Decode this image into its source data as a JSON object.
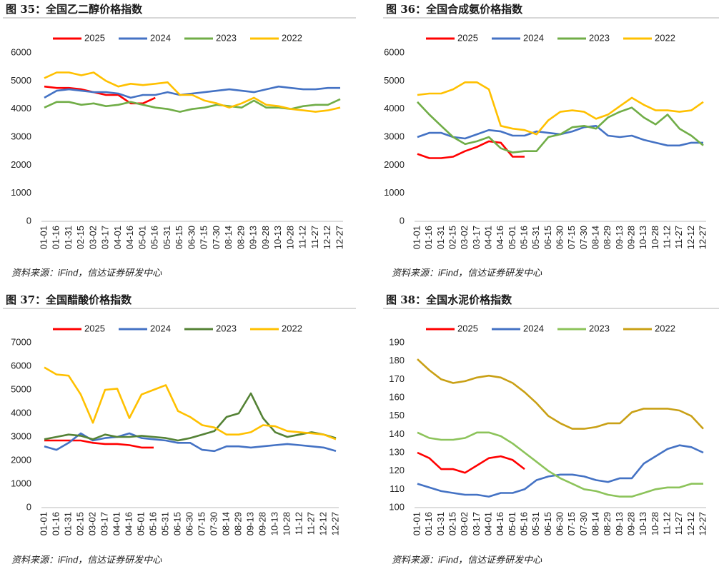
{
  "chart_data": [
    {
      "type": "line",
      "title": "图 35：全国乙二醇价格指数",
      "source": "资料来源：iFind，信达证券研发中心",
      "categories": [
        "01-01",
        "01-16",
        "01-31",
        "02-15",
        "03-02",
        "03-17",
        "04-01",
        "04-16",
        "05-01",
        "05-16",
        "05-31",
        "06-15",
        "06-30",
        "07-15",
        "07-30",
        "08-14",
        "08-29",
        "09-13",
        "09-28",
        "10-13",
        "10-28",
        "11-12",
        "11-27",
        "12-12",
        "12-27"
      ],
      "ylim": [
        0,
        6000
      ],
      "yticks": [
        0,
        1000,
        2000,
        3000,
        4000,
        5000,
        6000
      ],
      "series": [
        {
          "name": "2025",
          "color": "#ff0000",
          "values": [
            4800,
            4750,
            4750,
            4700,
            4600,
            4500,
            4500,
            4200,
            4200,
            4400,
            null,
            null,
            null,
            null,
            null,
            null,
            null,
            null,
            null,
            null,
            null,
            null,
            null,
            null,
            null
          ]
        },
        {
          "name": "2024",
          "color": "#4472c4",
          "values": [
            4400,
            4650,
            4700,
            4650,
            4600,
            4600,
            4550,
            4400,
            4500,
            4500,
            4600,
            4500,
            4550,
            4600,
            4650,
            4700,
            4650,
            4600,
            4700,
            4800,
            4750,
            4700,
            4700,
            4750,
            4750
          ]
        },
        {
          "name": "2023",
          "color": "#70ad47",
          "values": [
            4050,
            4250,
            4250,
            4150,
            4200,
            4100,
            4150,
            4250,
            4150,
            4050,
            4000,
            3900,
            4000,
            4050,
            4150,
            4100,
            4050,
            4300,
            4050,
            4050,
            4000,
            4100,
            4150,
            4150,
            4350
          ]
        },
        {
          "name": "2022",
          "color": "#ffc000",
          "values": [
            5100,
            5300,
            5300,
            5200,
            5300,
            5000,
            4800,
            4900,
            4850,
            4900,
            4950,
            4500,
            4500,
            4300,
            4200,
            4050,
            4200,
            4400,
            4150,
            4100,
            4000,
            3950,
            3900,
            3950,
            4050
          ]
        }
      ]
    },
    {
      "type": "line",
      "title": "图 36：全国合成氨价格指数",
      "source": "资料来源：iFind，信达证券研发中心",
      "categories": [
        "01-01",
        "01-16",
        "01-31",
        "02-15",
        "03-02",
        "03-17",
        "04-01",
        "04-16",
        "05-01",
        "05-16",
        "05-31",
        "06-15",
        "06-30",
        "07-15",
        "07-30",
        "08-14",
        "08-29",
        "09-13",
        "09-28",
        "10-13",
        "10-28",
        "11-12",
        "11-27",
        "12-12",
        "12-27"
      ],
      "ylim": [
        0,
        6000
      ],
      "yticks": [
        0,
        1000,
        2000,
        3000,
        4000,
        5000,
        6000
      ],
      "series": [
        {
          "name": "2025",
          "color": "#ff0000",
          "values": [
            2400,
            2250,
            2250,
            2300,
            2500,
            2650,
            2850,
            2800,
            2300,
            2300,
            null,
            null,
            null,
            null,
            null,
            null,
            null,
            null,
            null,
            null,
            null,
            null,
            null,
            null,
            null
          ]
        },
        {
          "name": "2024",
          "color": "#4472c4",
          "values": [
            3000,
            3150,
            3150,
            3000,
            2950,
            3100,
            3250,
            3200,
            3050,
            3050,
            3200,
            3150,
            3100,
            3200,
            3350,
            3400,
            3050,
            3000,
            3050,
            2900,
            2800,
            2700,
            2700,
            2800,
            2800
          ]
        },
        {
          "name": "2023",
          "color": "#70ad47",
          "values": [
            4250,
            3800,
            3400,
            3000,
            2750,
            2850,
            3000,
            2600,
            2450,
            2500,
            2500,
            3000,
            3100,
            3350,
            3400,
            3300,
            3700,
            3900,
            4050,
            3700,
            3450,
            3800,
            3300,
            3050,
            2700
          ]
        },
        {
          "name": "2022",
          "color": "#ffc000",
          "values": [
            4500,
            4550,
            4550,
            4700,
            4950,
            4950,
            4700,
            3400,
            3300,
            3250,
            3100,
            3600,
            3900,
            3950,
            3900,
            3650,
            3800,
            4100,
            4400,
            4150,
            3950,
            3950,
            3900,
            3950,
            4250
          ]
        }
      ]
    },
    {
      "type": "line",
      "title": "图 37：全国醋酸价格指数",
      "source": "资料来源：iFind，信达证券研发中心",
      "categories": [
        "01-01",
        "01-16",
        "01-31",
        "02-15",
        "03-02",
        "03-17",
        "04-01",
        "04-16",
        "05-01",
        "05-16",
        "05-31",
        "06-15",
        "06-30",
        "07-15",
        "07-30",
        "08-14",
        "08-29",
        "09-13",
        "09-28",
        "10-13",
        "10-28",
        "11-12",
        "11-27",
        "12-12",
        "12-27"
      ],
      "ylim": [
        0,
        7000
      ],
      "yticks": [
        0,
        1000,
        2000,
        3000,
        4000,
        5000,
        6000,
        7000
      ],
      "series": [
        {
          "name": "2025",
          "color": "#ff0000",
          "values": [
            2850,
            2850,
            2850,
            2850,
            2750,
            2700,
            2700,
            2650,
            2550,
            2550,
            null,
            null,
            null,
            null,
            null,
            null,
            null,
            null,
            null,
            null,
            null,
            null,
            null,
            null,
            null
          ]
        },
        {
          "name": "2024",
          "color": "#4472c4",
          "values": [
            2600,
            2450,
            2750,
            3150,
            2850,
            2950,
            3000,
            3150,
            2950,
            2900,
            2850,
            2750,
            2750,
            2450,
            2400,
            2600,
            2600,
            2550,
            2600,
            2650,
            2700,
            2650,
            2600,
            2550,
            2400
          ]
        },
        {
          "name": "2023",
          "color": "#548235",
          "values": [
            2900,
            3000,
            3100,
            3050,
            2900,
            3100,
            3000,
            3000,
            3050,
            3000,
            2950,
            2850,
            2950,
            3100,
            3250,
            3850,
            4000,
            4850,
            3800,
            3200,
            3000,
            3100,
            3200,
            3100,
            2950
          ]
        },
        {
          "name": "2022",
          "color": "#ffc000",
          "values": [
            5950,
            5650,
            5600,
            4800,
            3600,
            5000,
            5050,
            3800,
            4800,
            5000,
            5200,
            4100,
            3850,
            3500,
            3400,
            3100,
            3100,
            3200,
            3500,
            3450,
            3250,
            3200,
            3150,
            3100,
            2900
          ]
        }
      ]
    },
    {
      "type": "line",
      "title": "图 38：全国水泥价格指数",
      "source": "资料来源：iFind，信达证券研发中心",
      "categories": [
        "01-01",
        "01-16",
        "01-31",
        "02-15",
        "03-02",
        "03-17",
        "04-01",
        "04-16",
        "05-01",
        "05-16",
        "05-31",
        "06-15",
        "06-30",
        "07-15",
        "07-30",
        "08-14",
        "08-29",
        "09-13",
        "09-28",
        "10-13",
        "10-28",
        "11-12",
        "11-27",
        "12-12",
        "12-27"
      ],
      "ylim": [
        100,
        190
      ],
      "yticks": [
        100,
        110,
        120,
        130,
        140,
        150,
        160,
        170,
        180,
        190
      ],
      "series": [
        {
          "name": "2025",
          "color": "#ff0000",
          "values": [
            130,
            127,
            121,
            121,
            119,
            123,
            127,
            128,
            126,
            121,
            null,
            null,
            null,
            null,
            null,
            null,
            null,
            null,
            null,
            null,
            null,
            null,
            null,
            null,
            null
          ]
        },
        {
          "name": "2024",
          "color": "#4472c4",
          "values": [
            113,
            111,
            109,
            108,
            107,
            107,
            106,
            108,
            108,
            110,
            115,
            117,
            118,
            118,
            117,
            115,
            114,
            116,
            116,
            124,
            128,
            132,
            134,
            133,
            130
          ]
        },
        {
          "name": "2023",
          "color": "#8cc35a",
          "values": [
            141,
            138,
            137,
            137,
            138,
            141,
            141,
            139,
            135,
            130,
            125,
            120,
            116,
            113,
            110,
            109,
            107,
            106,
            106,
            108,
            110,
            111,
            111,
            113,
            113
          ]
        },
        {
          "name": "2022",
          "color": "#c9a015",
          "values": [
            181,
            175,
            170,
            168,
            169,
            171,
            172,
            171,
            168,
            163,
            157,
            150,
            146,
            143,
            143,
            144,
            146,
            146,
            152,
            154,
            154,
            154,
            153,
            150,
            143
          ]
        }
      ]
    }
  ]
}
